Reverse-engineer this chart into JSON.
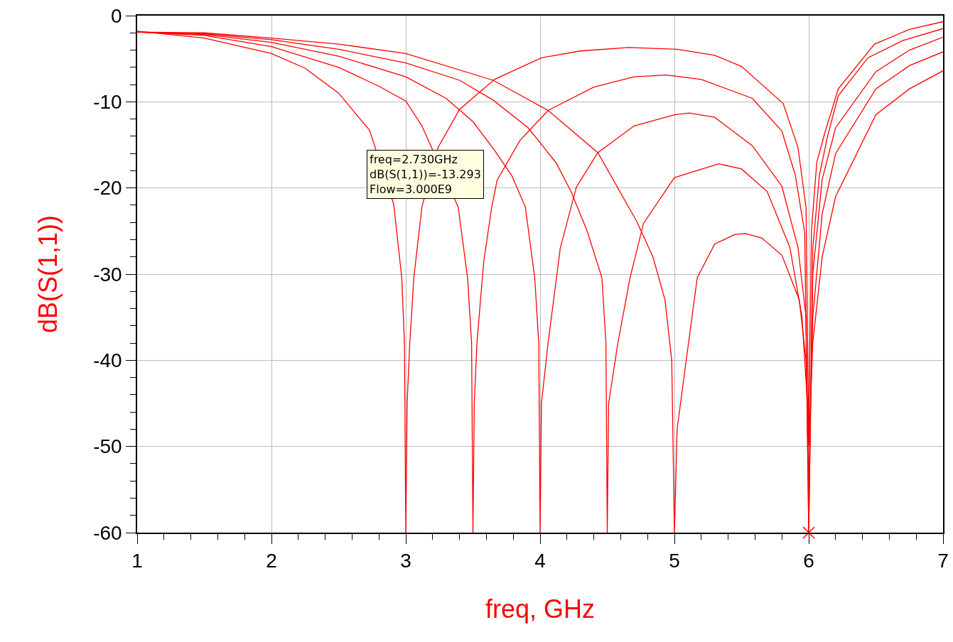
{
  "chart_data": {
    "type": "line",
    "xlabel": "freq, GHz",
    "ylabel": "dB(S(1,1))",
    "xlim": [
      1,
      7
    ],
    "ylim": [
      -60,
      0
    ],
    "xticks": [
      1,
      2,
      3,
      4,
      5,
      6,
      7
    ],
    "yticks": [
      0,
      -10,
      -20,
      -30,
      -40,
      -50,
      -60
    ],
    "grid": true,
    "marker": "none",
    "line_style": "solid",
    "series": [
      {
        "color": "#ff0000",
        "x": [
          1,
          1.5,
          2,
          2.25,
          2.5,
          2.73,
          2.91,
          2.97,
          2.99,
          3.0,
          3.01,
          3.03,
          3.06,
          3.12,
          3.24,
          3.4,
          3.66,
          4.01,
          4.3,
          4.66,
          5.02,
          5.3,
          5.5,
          5.81,
          5.92,
          5.98,
          6.0,
          6.02,
          6.06,
          6.12,
          6.22,
          6.49,
          6.75,
          7
        ],
        "values": [
          -1.8,
          -2.6,
          -4.4,
          -6.1,
          -9.0,
          -13.3,
          -21.9,
          -30.4,
          -38,
          -60,
          -45,
          -37.9,
          -30.4,
          -22.2,
          -15.3,
          -10.9,
          -7.4,
          -4.9,
          -4.1,
          -3.7,
          -3.9,
          -4.6,
          -5.9,
          -10.2,
          -15.3,
          -22.3,
          -49,
          -25,
          -17,
          -13.6,
          -8.5,
          -3.3,
          -1.6,
          -0.7
        ]
      },
      {
        "color": "#ff0000",
        "x": [
          1,
          1.5,
          2,
          2.5,
          2.8,
          3.0,
          3.12,
          3.39,
          3.46,
          3.49,
          3.5,
          3.51,
          3.53,
          3.58,
          3.64,
          3.68,
          3.85,
          4.06,
          4.4,
          4.7,
          4.94,
          5.2,
          5.58,
          5.8,
          5.9,
          5.97,
          6.0,
          6.03,
          6.08,
          6.14,
          6.22,
          6.44,
          6.7,
          7
        ],
        "values": [
          -1.9,
          -2.3,
          -3.6,
          -6.0,
          -8.2,
          -9.9,
          -12.8,
          -22.2,
          -30.4,
          -38,
          -60,
          -45,
          -37.9,
          -28.6,
          -22.2,
          -19.1,
          -14.5,
          -11.0,
          -8.3,
          -7.1,
          -6.9,
          -7.4,
          -9.6,
          -13.4,
          -18.5,
          -25.2,
          -60,
          -27,
          -18.5,
          -14,
          -9.3,
          -4.9,
          -2.9,
          -1.5
        ]
      },
      {
        "color": "#ff0000",
        "x": [
          1,
          1.5,
          2,
          2.5,
          3.0,
          3.3,
          3.5,
          3.66,
          3.79,
          3.89,
          3.96,
          3.99,
          4.0,
          4.01,
          4.06,
          4.15,
          4.27,
          4.43,
          4.7,
          5.0,
          5.11,
          5.3,
          5.58,
          5.8,
          5.92,
          5.98,
          6.0,
          6.03,
          6.1,
          6.2,
          6.5,
          6.75,
          7
        ],
        "values": [
          -1.9,
          -2.2,
          -3.1,
          -4.7,
          -7.1,
          -9.6,
          -12.3,
          -15.6,
          -18.6,
          -22.2,
          -30.4,
          -38,
          -60,
          -45,
          -37.9,
          -27.0,
          -19.9,
          -15.9,
          -12.8,
          -11.5,
          -11.3,
          -11.8,
          -15.1,
          -19.8,
          -26.9,
          -35,
          -60,
          -30,
          -19,
          -13,
          -6.5,
          -4,
          -2.5
        ]
      },
      {
        "color": "#ff0000",
        "x": [
          1,
          1.5,
          2,
          2.5,
          3.0,
          3.4,
          3.65,
          3.91,
          4.12,
          4.23,
          4.35,
          4.46,
          4.49,
          4.5,
          4.51,
          4.58,
          4.67,
          4.77,
          5.0,
          5.33,
          5.5,
          5.69,
          5.86,
          5.95,
          5.99,
          6.0,
          6.03,
          6.1,
          6.2,
          6.5,
          6.75,
          7
        ],
        "values": [
          -1.9,
          -2.1,
          -2.8,
          -3.9,
          -5.5,
          -7.5,
          -9.8,
          -13.0,
          -17.1,
          -20.4,
          -25,
          -30.4,
          -38,
          -60,
          -45,
          -37.9,
          -30.4,
          -24.1,
          -18.8,
          -17.2,
          -17.8,
          -20.4,
          -26.9,
          -35,
          -45,
          -55,
          -35,
          -23,
          -16,
          -8.5,
          -5.8,
          -4.2
        ]
      },
      {
        "color": "#ff0000",
        "x": [
          1,
          1.5,
          2,
          2.5,
          3.0,
          3.65,
          4.06,
          4.43,
          4.72,
          4.84,
          4.93,
          4.98,
          5.0,
          5.02,
          5.08,
          5.17,
          5.3,
          5.45,
          5.53,
          5.65,
          5.8,
          5.93,
          5.98,
          6.0,
          6.03,
          6.1,
          6.2,
          6.5,
          6.75,
          7
        ],
        "values": [
          -1.9,
          -2.0,
          -2.6,
          -3.3,
          -4.4,
          -7.5,
          -11.0,
          -15.9,
          -23.9,
          -28,
          -33,
          -40,
          -60,
          -48,
          -40.9,
          -30.4,
          -26.5,
          -25.4,
          -25.3,
          -25.8,
          -27.8,
          -33,
          -40,
          -50,
          -38,
          -28,
          -21,
          -11.5,
          -8.5,
          -6.4
        ]
      },
      {
        "type": "scatter",
        "marker": "cross",
        "color": "#ff0000",
        "x": [
          6
        ],
        "values": [
          -60
        ]
      }
    ],
    "annotations": [
      {
        "text": "freq=2.730GHz\ndB(S(1,1))=-13.293\nFlow=3.000E9",
        "x": 2.73,
        "y": -13.293
      }
    ]
  }
}
